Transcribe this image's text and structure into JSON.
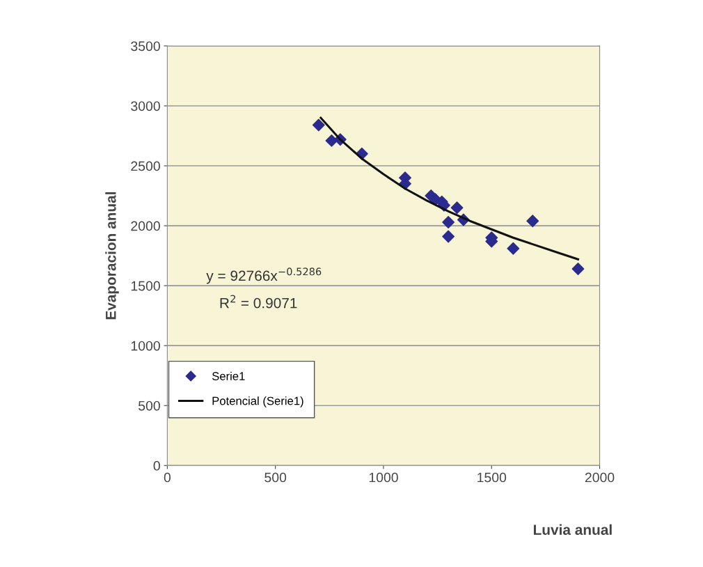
{
  "chart_data": {
    "type": "scatter",
    "xlabel": "Luvia anual",
    "ylabel": "Evaporacion anual",
    "annotations": [
      "y = 92766x$^{−0.5286}$",
      "R$^{2}$ = 0.9071"
    ],
    "xlim": [
      0,
      2000
    ],
    "xticks": [
      0,
      500,
      1000,
      1500,
      2000
    ],
    "ylim": [
      0,
      3500
    ],
    "yticks": [
      0,
      500,
      1000,
      1500,
      2000,
      2500,
      3000,
      3500
    ],
    "grid": "y",
    "legend": "bottom left",
    "series": [
      {
        "name": "Serie1",
        "marker": "diamond",
        "color": "#2b2a8e",
        "x": [
          700,
          760,
          800,
          900,
          1100,
          1100,
          1220,
          1240,
          1270,
          1280,
          1340,
          1370,
          1300,
          1300,
          1500,
          1500,
          1690,
          1600,
          1900
        ],
        "values": [
          2840,
          2710,
          2720,
          2600,
          2400,
          2350,
          2250,
          2220,
          2200,
          2170,
          2150,
          2050,
          2030,
          1910,
          1900,
          1870,
          2040,
          1810,
          1640
        ]
      },
      {
        "name": "Potencial (Serie1)",
        "type": "line",
        "marker": "none",
        "line_style": "solid",
        "color": "#111111",
        "x": [
          710,
          800,
          900,
          1000,
          1100,
          1200,
          1300,
          1400,
          1500,
          1600,
          1700,
          1800,
          1900
        ],
        "values": [
          2900,
          2720,
          2560,
          2430,
          2310,
          2210,
          2120,
          2040,
          1970,
          1900,
          1840,
          1780,
          1720
        ]
      }
    ]
  }
}
